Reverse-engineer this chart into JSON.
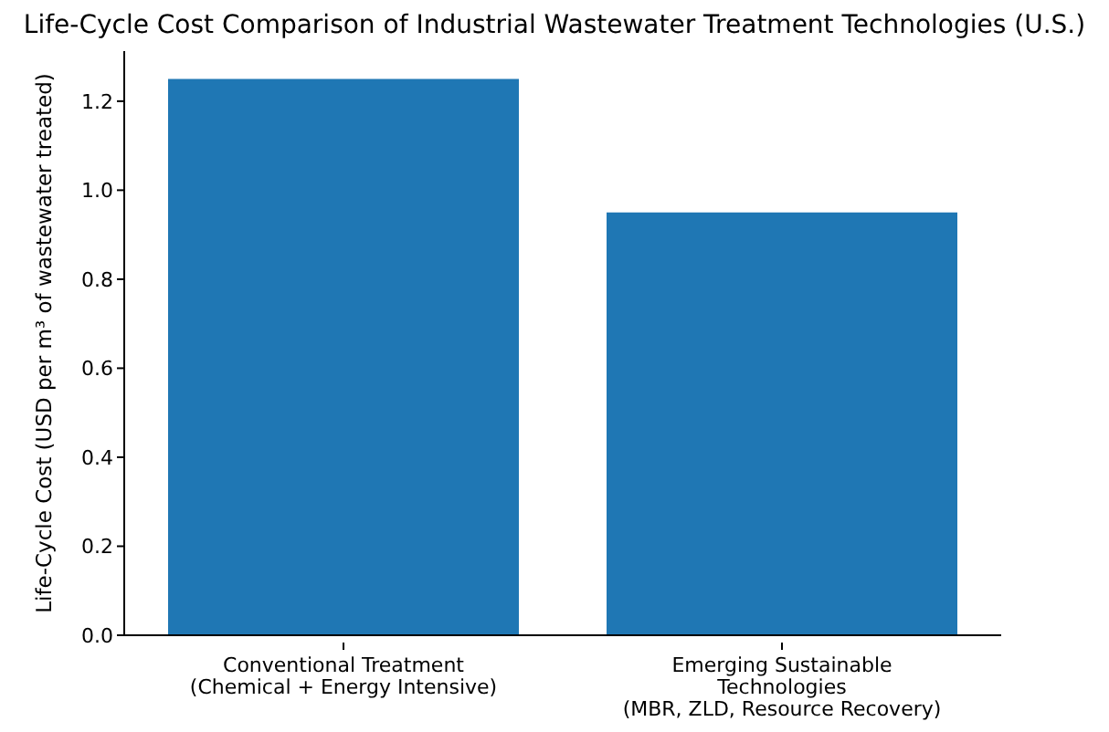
{
  "chart_data": {
    "type": "bar",
    "title": "Life-Cycle Cost Comparison of Industrial Wastewater Treatment Technologies (U.S.)",
    "ylabel": "Life-Cycle Cost (USD per m³ of wastewater treated)",
    "categories": [
      "Conventional Treatment\n(Chemical + Energy Intensive)",
      "Emerging Sustainable\nTechnologies\n(MBR, ZLD, Resource Recovery)"
    ],
    "values": [
      1.25,
      0.95
    ],
    "color": "#1f77b4",
    "ylim": [
      0,
      1.3125
    ],
    "yticks": [
      {
        "value": 0,
        "label": "0.0"
      },
      {
        "value": 0.2,
        "label": "0.2"
      },
      {
        "value": 0.4,
        "label": "0.4"
      },
      {
        "value": 0.6,
        "label": "0.6"
      },
      {
        "value": 0.8,
        "label": "0.8"
      },
      {
        "value": 1.0,
        "label": "1.0"
      },
      {
        "value": 1.2,
        "label": "1.2"
      }
    ],
    "grid": false,
    "legend": false
  }
}
